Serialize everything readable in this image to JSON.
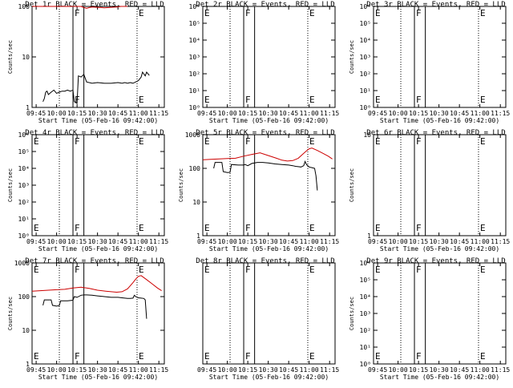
{
  "page": {
    "title": ""
  },
  "chart_data": [
    {
      "type": "line",
      "title": "Det 1r BLACK = Events, RED = LLD",
      "xlabel": "Start Time (05-Feb-16 09:42:00)",
      "ylabel": "Counts/sec",
      "xlim": [
        "09:42",
        "11:19"
      ],
      "ylim": [
        1,
        100
      ],
      "yscale": "log",
      "x_ticks": [
        "09:45",
        "10:00",
        "10:15",
        "10:30",
        "10:45",
        "11:00",
        "11:15"
      ],
      "y_ticks": [
        "1",
        "10",
        "100"
      ],
      "show_ylabel": true,
      "markers": [
        {
          "label": "",
          "time": "10:02",
          "style": "dotted"
        },
        {
          "label": "F",
          "time": "10:12",
          "style": "solid"
        },
        {
          "label": "",
          "time": "10:20",
          "style": "solid"
        },
        {
          "label": "E",
          "time": "10:59",
          "style": "dotted"
        }
      ],
      "series": [
        {
          "color": "#cc0000",
          "x": [
            "09:42",
            "09:44",
            "09:46",
            "09:48",
            "09:50",
            "09:52",
            "09:54",
            "09:56",
            "10:08",
            "10:14",
            "10:18",
            "10:20",
            "10:22",
            "10:24",
            "10:26",
            "10:30",
            "10:35",
            "10:40",
            "10:45",
            "10:47",
            "10:50",
            "10:52"
          ],
          "y": [
            100,
            100,
            100,
            100,
            100,
            100,
            100,
            100,
            100,
            100,
            100,
            95,
            92,
            95,
            97,
            96,
            94,
            96,
            98,
            100,
            100,
            100
          ]
        },
        {
          "color": "#000000",
          "x": [
            "09:50",
            "09:51",
            "09:52",
            "09:53",
            "09:54",
            "09:56",
            "09:58",
            "10:00",
            "10:02",
            "10:04",
            "10:06",
            "10:08",
            "10:10",
            "10:12",
            "10:13",
            "10:15",
            "10:16",
            "10:18",
            "10:20",
            "10:22",
            "10:26",
            "10:30",
            "10:35",
            "10:40",
            "10:45",
            "10:48",
            "10:50",
            "10:52",
            "10:54",
            "10:56",
            "10:58",
            "11:00",
            "11:02",
            "11:03",
            "11:05",
            "11:06",
            "11:08"
          ],
          "y": [
            1.3,
            1.5,
            2.0,
            2.1,
            1.8,
            2.0,
            2.2,
            1.9,
            2.0,
            2.1,
            2.1,
            2.2,
            2.1,
            2.2,
            1.3,
            1.2,
            4.2,
            4.0,
            4.5,
            3.2,
            3.0,
            3.1,
            3.0,
            3.0,
            3.1,
            3.0,
            3.1,
            3.0,
            3.1,
            3.0,
            3.2,
            3.4,
            4.0,
            5.0,
            4.2,
            5.0,
            4.3
          ]
        }
      ]
    },
    {
      "type": "line",
      "title": "Det 2r BLACK = Events, RED = LLD",
      "xlabel": "Start Time (05-Feb-16 09:42:00)",
      "ylabel": "",
      "xlim": [
        "09:42",
        "11:19"
      ],
      "ylim": [
        1,
        1000000
      ],
      "yscale": "log",
      "x_ticks": [
        "09:45",
        "10:00",
        "10:15",
        "10:30",
        "10:45",
        "11:00",
        "11:15"
      ],
      "y_ticks": [
        "10⁰",
        "10¹",
        "10²",
        "10³",
        "10⁴",
        "10⁵",
        "10⁶"
      ],
      "show_ylabel": false,
      "markers": [
        {
          "label": "E",
          "time": "09:42",
          "style": "dotted"
        },
        {
          "label": "",
          "time": "10:02",
          "style": "dotted"
        },
        {
          "label": "F",
          "time": "10:12",
          "style": "solid"
        },
        {
          "label": "",
          "time": "10:20",
          "style": "solid"
        },
        {
          "label": "E",
          "time": "10:59",
          "style": "dotted"
        }
      ],
      "series": []
    },
    {
      "type": "line",
      "title": "Det 3r BLACK = Events, RED = LLD",
      "xlabel": "Start Time (05-Feb-16 09:42:00)",
      "ylabel": "Counts/sec",
      "xlim": [
        "09:42",
        "11:19"
      ],
      "ylim": [
        1,
        1000000
      ],
      "yscale": "log",
      "x_ticks": [
        "09:45",
        "10:00",
        "10:15",
        "10:30",
        "10:45",
        "11:00",
        "11:15"
      ],
      "y_ticks": [
        "10⁰",
        "10¹",
        "10²",
        "10³",
        "10⁴",
        "10⁵",
        "10⁶"
      ],
      "show_ylabel": true,
      "markers": [
        {
          "label": "E",
          "time": "09:42",
          "style": "dotted"
        },
        {
          "label": "",
          "time": "10:02",
          "style": "dotted"
        },
        {
          "label": "F",
          "time": "10:12",
          "style": "solid"
        },
        {
          "label": "",
          "time": "10:20",
          "style": "solid"
        },
        {
          "label": "E",
          "time": "10:59",
          "style": "dotted"
        }
      ],
      "series": []
    },
    {
      "type": "line",
      "title": "Det 4r BLACK = Events, RED = LLD",
      "xlabel": "Start Time (05-Feb-16 09:42:00)",
      "ylabel": "Counts/sec",
      "xlim": [
        "09:42",
        "11:19"
      ],
      "ylim": [
        1,
        1000000
      ],
      "yscale": "log",
      "x_ticks": [
        "09:45",
        "10:00",
        "10:15",
        "10:30",
        "10:45",
        "11:00",
        "11:15"
      ],
      "y_ticks": [
        "10⁰",
        "10¹",
        "10²",
        "10³",
        "10⁴",
        "10⁵",
        "10⁶"
      ],
      "show_ylabel": true,
      "markers": [
        {
          "label": "E",
          "time": "09:42",
          "style": "dotted"
        },
        {
          "label": "",
          "time": "10:02",
          "style": "dotted"
        },
        {
          "label": "F",
          "time": "10:12",
          "style": "solid"
        },
        {
          "label": "",
          "time": "10:20",
          "style": "solid"
        },
        {
          "label": "E",
          "time": "10:59",
          "style": "dotted"
        }
      ],
      "series": []
    },
    {
      "type": "line",
      "title": "Det 5r BLACK = Events, RED = LLD",
      "xlabel": "Start Time (05-Feb-16 09:42:00)",
      "ylabel": "Counts/sec",
      "xlim": [
        "09:42",
        "11:19"
      ],
      "ylim": [
        1,
        1000
      ],
      "yscale": "log",
      "x_ticks": [
        "09:45",
        "10:00",
        "10:15",
        "10:30",
        "10:45",
        "11:00",
        "11:15"
      ],
      "y_ticks": [
        "1",
        "10",
        "100",
        "1000"
      ],
      "show_ylabel": true,
      "markers": [
        {
          "label": "E",
          "time": "09:42",
          "style": "dotted"
        },
        {
          "label": "",
          "time": "10:02",
          "style": "dotted"
        },
        {
          "label": "F",
          "time": "10:12",
          "style": "solid"
        },
        {
          "label": "",
          "time": "10:20",
          "style": "solid"
        },
        {
          "label": "E",
          "time": "10:59",
          "style": "dotted"
        }
      ],
      "series": [
        {
          "color": "#cc0000",
          "x": [
            "09:42",
            "09:48",
            "09:54",
            "10:00",
            "10:06",
            "10:12",
            "10:18",
            "10:24",
            "10:30",
            "10:36",
            "10:40",
            "10:44",
            "10:48",
            "10:52",
            "10:56",
            "10:58",
            "11:00",
            "11:02",
            "11:06",
            "11:10",
            "11:14",
            "11:17"
          ],
          "y": [
            180,
            185,
            190,
            195,
            200,
            230,
            260,
            290,
            240,
            200,
            175,
            165,
            170,
            200,
            280,
            330,
            380,
            400,
            340,
            280,
            230,
            190
          ]
        },
        {
          "color": "#000000",
          "x": [
            "09:50",
            "09:51",
            "09:56",
            "09:57",
            "10:00",
            "10:02",
            "10:03",
            "10:08",
            "10:12",
            "10:13",
            "10:15",
            "10:18",
            "10:20",
            "10:22",
            "10:26",
            "10:30",
            "10:35",
            "10:40",
            "10:45",
            "10:48",
            "10:50",
            "10:52",
            "10:54",
            "10:56",
            "10:57",
            "10:58",
            "11:00",
            "11:02",
            "11:04",
            "11:05",
            "11:06"
          ],
          "y": [
            100,
            150,
            150,
            80,
            75,
            76,
            130,
            125,
            125,
            130,
            120,
            140,
            145,
            150,
            150,
            145,
            135,
            130,
            125,
            120,
            115,
            112,
            110,
            120,
            160,
            130,
            110,
            105,
            100,
            60,
            22
          ]
        }
      ]
    },
    {
      "type": "line",
      "title": "Det 6r BLACK = Events, RED = LLD",
      "xlabel": "Start Time (05-Feb-16 09:42:00)",
      "ylabel": "Counts/sec",
      "xlim": [
        "09:42",
        "11:19"
      ],
      "ylim": [
        1,
        10
      ],
      "yscale": "log",
      "x_ticks": [
        "09:45",
        "10:00",
        "10:15",
        "10:30",
        "10:45",
        "11:00",
        "11:15"
      ],
      "y_ticks": [
        "1",
        "10"
      ],
      "show_ylabel": true,
      "markers": [
        {
          "label": "E",
          "time": "09:42",
          "style": "dotted"
        },
        {
          "label": "",
          "time": "10:02",
          "style": "dotted"
        },
        {
          "label": "F",
          "time": "10:12",
          "style": "solid"
        },
        {
          "label": "",
          "time": "10:20",
          "style": "solid"
        },
        {
          "label": "E",
          "time": "10:59",
          "style": "dotted"
        }
      ],
      "series": []
    },
    {
      "type": "line",
      "title": "Det 7r BLACK = Events, RED = LLD",
      "xlabel": "Start Time (05-Feb-16 09:42:00)",
      "ylabel": "Counts/sec",
      "xlim": [
        "09:42",
        "11:19"
      ],
      "ylim": [
        1,
        1000
      ],
      "yscale": "log",
      "x_ticks": [
        "09:45",
        "10:00",
        "10:15",
        "10:30",
        "10:45",
        "11:00",
        "11:15"
      ],
      "y_ticks": [
        "1",
        "10",
        "100",
        "1000"
      ],
      "show_ylabel": true,
      "markers": [
        {
          "label": "E",
          "time": "09:42",
          "style": "dotted"
        },
        {
          "label": "",
          "time": "10:02",
          "style": "dotted"
        },
        {
          "label": "F",
          "time": "10:12",
          "style": "solid"
        },
        {
          "label": "",
          "time": "10:20",
          "style": "solid"
        },
        {
          "label": "E",
          "time": "10:59",
          "style": "dotted"
        }
      ],
      "series": [
        {
          "color": "#cc0000",
          "x": [
            "09:42",
            "09:48",
            "09:54",
            "10:00",
            "10:06",
            "10:12",
            "10:18",
            "10:24",
            "10:30",
            "10:36",
            "10:40",
            "10:44",
            "10:48",
            "10:52",
            "10:56",
            "10:58",
            "11:00",
            "11:02",
            "11:06",
            "11:10",
            "11:14",
            "11:17"
          ],
          "y": [
            145,
            150,
            155,
            160,
            165,
            180,
            190,
            175,
            155,
            145,
            140,
            135,
            140,
            170,
            260,
            330,
            400,
            420,
            320,
            240,
            180,
            150
          ]
        },
        {
          "color": "#000000",
          "x": [
            "09:50",
            "09:51",
            "09:56",
            "09:57",
            "10:00",
            "10:02",
            "10:03",
            "10:08",
            "10:12",
            "10:13",
            "10:15",
            "10:18",
            "10:20",
            "10:22",
            "10:26",
            "10:30",
            "10:35",
            "10:40",
            "10:45",
            "10:48",
            "10:50",
            "10:52",
            "10:54",
            "10:56",
            "10:57",
            "10:58",
            "11:00",
            "11:02",
            "11:04",
            "11:05",
            "11:06"
          ],
          "y": [
            55,
            80,
            80,
            55,
            52,
            54,
            75,
            75,
            78,
            100,
            95,
            110,
            112,
            112,
            110,
            105,
            100,
            95,
            95,
            92,
            90,
            88,
            88,
            90,
            110,
            100,
            92,
            90,
            88,
            80,
            22
          ]
        }
      ]
    },
    {
      "type": "line",
      "title": "Det 8r BLACK = Events, RED = LLD",
      "xlabel": "Start Time (05-Feb-16 09:42:00)",
      "ylabel": "",
      "xlim": [
        "09:42",
        "11:19"
      ],
      "ylim": [
        1,
        10
      ],
      "yscale": "log",
      "x_ticks": [
        "09:45",
        "10:00",
        "10:15",
        "10:30",
        "10:45",
        "11:00",
        "11:15"
      ],
      "y_ticks": [],
      "show_ylabel": false,
      "markers": [
        {
          "label": "E",
          "time": "09:42",
          "style": "dotted"
        },
        {
          "label": "",
          "time": "10:02",
          "style": "dotted"
        },
        {
          "label": "F",
          "time": "10:12",
          "style": "solid"
        },
        {
          "label": "",
          "time": "10:20",
          "style": "solid"
        },
        {
          "label": "E",
          "time": "10:59",
          "style": "dotted"
        }
      ],
      "series": []
    },
    {
      "type": "line",
      "title": "Det 9r BLACK = Events, RED = LLD",
      "xlabel": "Start Time (05-Feb-16 09:42:00)",
      "ylabel": "Counts/sec",
      "xlim": [
        "09:42",
        "11:19"
      ],
      "ylim": [
        1,
        1000000
      ],
      "yscale": "log",
      "x_ticks": [
        "09:45",
        "10:00",
        "10:15",
        "10:30",
        "10:45",
        "11:00",
        "11:15"
      ],
      "y_ticks": [
        "10⁰",
        "10¹",
        "10²",
        "10³",
        "10⁴",
        "10⁵",
        "10⁶"
      ],
      "show_ylabel": true,
      "markers": [
        {
          "label": "E",
          "time": "09:42",
          "style": "dotted"
        },
        {
          "label": "",
          "time": "10:02",
          "style": "dotted"
        },
        {
          "label": "F",
          "time": "10:12",
          "style": "solid"
        },
        {
          "label": "",
          "time": "10:20",
          "style": "solid"
        },
        {
          "label": "E",
          "time": "10:59",
          "style": "dotted"
        }
      ],
      "series": []
    }
  ]
}
